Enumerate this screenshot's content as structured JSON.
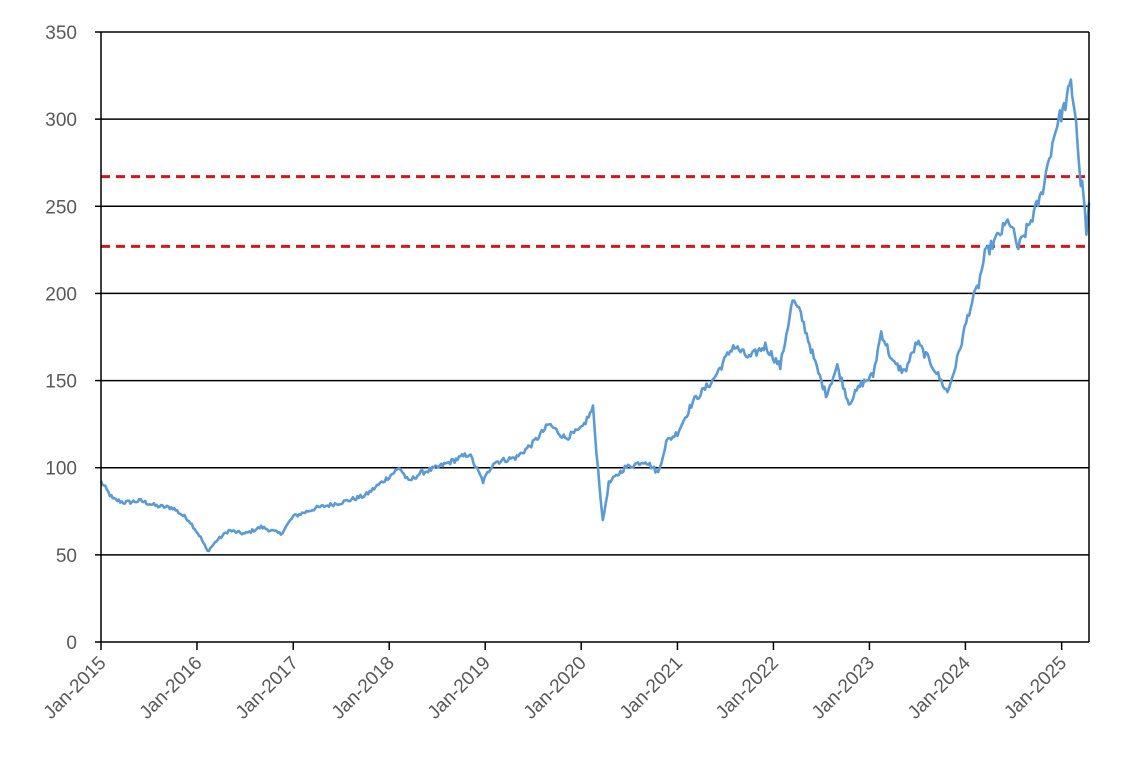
{
  "chart_data": {
    "type": "line",
    "title": "",
    "xlabel": "",
    "ylabel": "",
    "ylim": [
      0,
      350
    ],
    "xlim": [
      "2015-01-01",
      "2025-04-15"
    ],
    "y_ticks": [
      "0",
      "50",
      "100",
      "150",
      "200",
      "250",
      "300",
      "350"
    ],
    "x_ticks": [
      {
        "date": "2015-01-01",
        "label": "Jan-2015"
      },
      {
        "date": "2016-01-01",
        "label": "Jan-2016"
      },
      {
        "date": "2017-01-01",
        "label": "Jan-2017"
      },
      {
        "date": "2018-01-01",
        "label": "Jan-2018"
      },
      {
        "date": "2019-01-01",
        "label": "Jan-2019"
      },
      {
        "date": "2020-01-01",
        "label": "Jan-2020"
      },
      {
        "date": "2021-01-01",
        "label": "Jan-2021"
      },
      {
        "date": "2022-01-01",
        "label": "Jan-2022"
      },
      {
        "date": "2023-01-01",
        "label": "Jan-2023"
      },
      {
        "date": "2024-01-01",
        "label": "Jan-2024"
      },
      {
        "date": "2025-01-01",
        "label": "Jan-2025"
      }
    ],
    "grid": true,
    "reference_lines": [
      {
        "y": 267,
        "color": "#d0191c",
        "style": "dashed"
      },
      {
        "y": 227,
        "color": "#d0191c",
        "style": "dashed"
      }
    ],
    "series": [
      {
        "color": "#5b9bd5",
        "points": [
          [
            "2015-01-01",
            92
          ],
          [
            "2015-02-15",
            82
          ],
          [
            "2015-04-01",
            80
          ],
          [
            "2015-06-01",
            81
          ],
          [
            "2015-08-01",
            78
          ],
          [
            "2015-10-01",
            77
          ],
          [
            "2015-12-01",
            70
          ],
          [
            "2016-01-15",
            60
          ],
          [
            "2016-02-10",
            52
          ],
          [
            "2016-03-15",
            58
          ],
          [
            "2016-05-01",
            64
          ],
          [
            "2016-07-01",
            62
          ],
          [
            "2016-09-01",
            66
          ],
          [
            "2016-11-15",
            62
          ],
          [
            "2017-01-01",
            72
          ],
          [
            "2017-04-01",
            77
          ],
          [
            "2017-07-01",
            80
          ],
          [
            "2017-10-01",
            84
          ],
          [
            "2018-01-01",
            95
          ],
          [
            "2018-02-10",
            100
          ],
          [
            "2018-03-15",
            92
          ],
          [
            "2018-05-01",
            97
          ],
          [
            "2018-07-01",
            100
          ],
          [
            "2018-09-01",
            104
          ],
          [
            "2018-11-01",
            108
          ],
          [
            "2018-12-24",
            92
          ],
          [
            "2019-02-01",
            103
          ],
          [
            "2019-05-01",
            106
          ],
          [
            "2019-07-01",
            114
          ],
          [
            "2019-09-01",
            125
          ],
          [
            "2019-11-01",
            117
          ],
          [
            "2020-01-01",
            122
          ],
          [
            "2020-02-15",
            134
          ],
          [
            "2020-02-28",
            110
          ],
          [
            "2020-03-23",
            69
          ],
          [
            "2020-04-15",
            91
          ],
          [
            "2020-06-15",
            100
          ],
          [
            "2020-09-01",
            104
          ],
          [
            "2020-10-20",
            97
          ],
          [
            "2020-11-20",
            115
          ],
          [
            "2021-01-01",
            120
          ],
          [
            "2021-03-01",
            138
          ],
          [
            "2021-05-15",
            150
          ],
          [
            "2021-08-01",
            170
          ],
          [
            "2021-10-01",
            163
          ],
          [
            "2021-12-01",
            170
          ],
          [
            "2022-01-27",
            158
          ],
          [
            "2022-03-15",
            196
          ],
          [
            "2022-04-15",
            188
          ],
          [
            "2022-06-15",
            157
          ],
          [
            "2022-07-20",
            142
          ],
          [
            "2022-09-01",
            158
          ],
          [
            "2022-10-15",
            137
          ],
          [
            "2022-12-01",
            148
          ],
          [
            "2023-01-15",
            153
          ],
          [
            "2023-02-15",
            178
          ],
          [
            "2023-04-01",
            160
          ],
          [
            "2023-05-15",
            155
          ],
          [
            "2023-07-01",
            172
          ],
          [
            "2023-09-01",
            158
          ],
          [
            "2023-10-25",
            143
          ],
          [
            "2023-12-01",
            162
          ],
          [
            "2024-01-15",
            190
          ],
          [
            "2024-02-20",
            205
          ],
          [
            "2024-03-15",
            222
          ],
          [
            "2024-05-01",
            232
          ],
          [
            "2024-06-15",
            242
          ],
          [
            "2024-07-20",
            226
          ],
          [
            "2024-09-01",
            240
          ],
          [
            "2024-10-15",
            256
          ],
          [
            "2024-11-15",
            278
          ],
          [
            "2024-12-15",
            298
          ],
          [
            "2025-01-10",
            306
          ],
          [
            "2025-02-05",
            320
          ],
          [
            "2025-02-25",
            300
          ],
          [
            "2025-03-10",
            268
          ],
          [
            "2025-03-25",
            258
          ],
          [
            "2025-04-05",
            232
          ],
          [
            "2025-04-15",
            252
          ]
        ]
      }
    ]
  }
}
